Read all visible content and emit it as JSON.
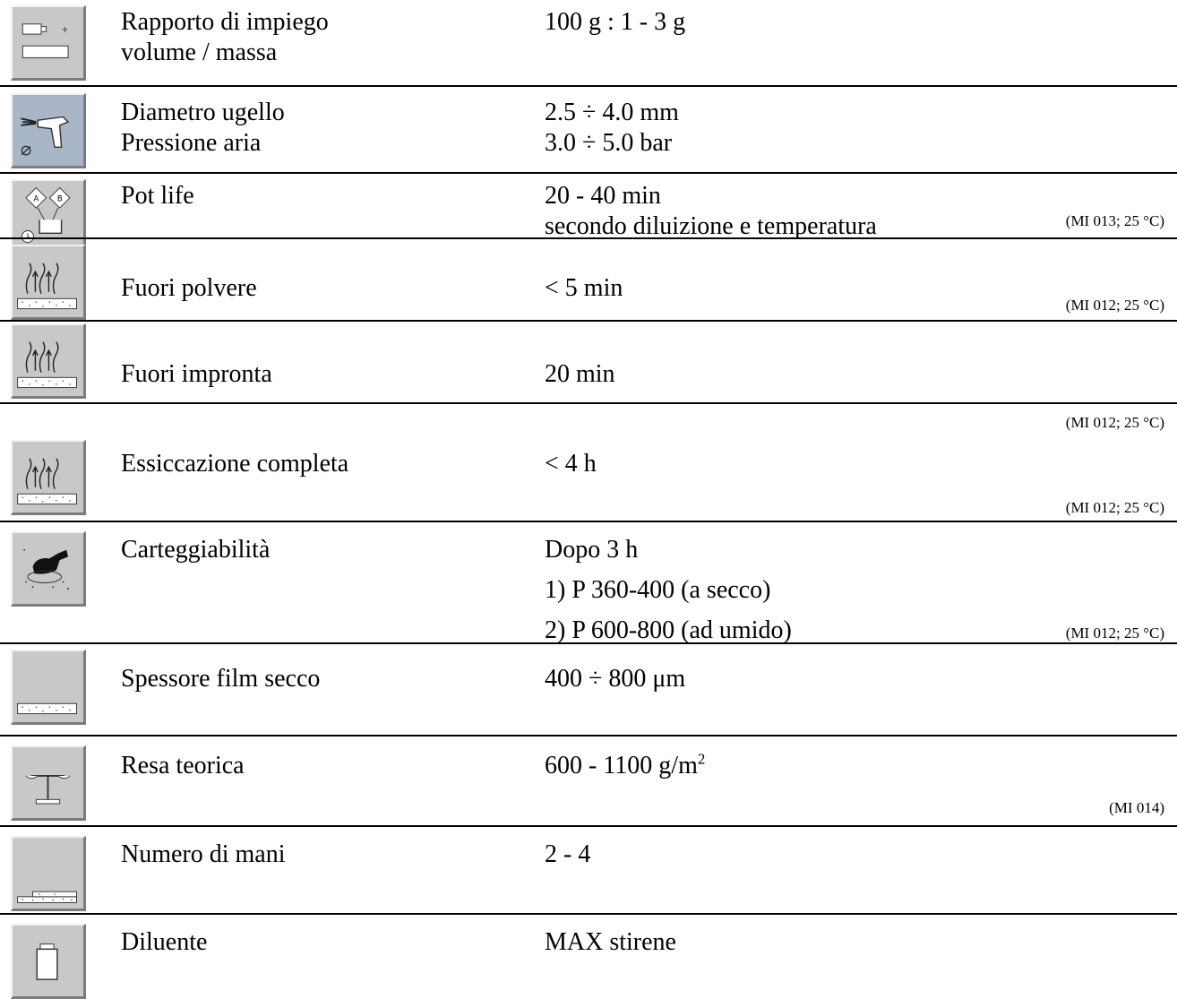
{
  "rows": [
    {
      "icon": "mixing-ratio-icon",
      "label": [
        "Rapporto di impiego",
        "volume / massa"
      ],
      "value": [
        "100 g : 1 - 3 g"
      ],
      "note": ""
    },
    {
      "icon": "spray-gun-icon",
      "label": [
        "Diametro ugello",
        "Pressione aria"
      ],
      "value": [
        "2.5 ÷ 4.0 mm",
        "3.0 ÷ 5.0 bar"
      ],
      "note": ""
    },
    {
      "icon": "pot-life-icon",
      "label": [
        "Pot life"
      ],
      "value": [
        "20 - 40 min",
        "secondo diluizione e temperatura"
      ],
      "note": "(MI 013; 25 °C)"
    },
    {
      "icon": "drying-icon",
      "label": [
        "Fuori polvere"
      ],
      "value": [
        "< 5 min"
      ],
      "note": "(MI 012; 25 °C)"
    },
    {
      "icon": "drying-icon",
      "label": [
        "Fuori impronta"
      ],
      "value": [
        "20 min"
      ],
      "note": "(MI 012; 25 °C)"
    },
    {
      "icon": "drying-icon",
      "label": [
        "Essiccazione completa"
      ],
      "value": [
        "< 4 h"
      ],
      "note": "(MI 012; 25 °C)"
    },
    {
      "icon": "sanding-icon",
      "label": [
        "Carteggiabilità"
      ],
      "value": [
        "Dopo 3 h",
        "1) P 360-400 (a secco)",
        "2) P 600-800 (ad umido)"
      ],
      "note": "(MI 012; 25 °C)"
    },
    {
      "icon": "film-thickness-icon",
      "label": [
        "Spessore film secco"
      ],
      "value": [
        "400 ÷ 800 μm"
      ],
      "note": ""
    },
    {
      "icon": "scale-icon",
      "label": [
        "Resa teorica"
      ],
      "value": [
        "600 - 1100 g/m",
        "2"
      ],
      "note": "(MI 014)"
    },
    {
      "icon": "coats-icon",
      "label": [
        "Numero di mani"
      ],
      "value": [
        "2 - 4"
      ],
      "note": ""
    },
    {
      "icon": "thinner-can-icon",
      "label": [
        "Diluente"
      ],
      "value": [
        "MAX stirene"
      ],
      "note": ""
    }
  ]
}
